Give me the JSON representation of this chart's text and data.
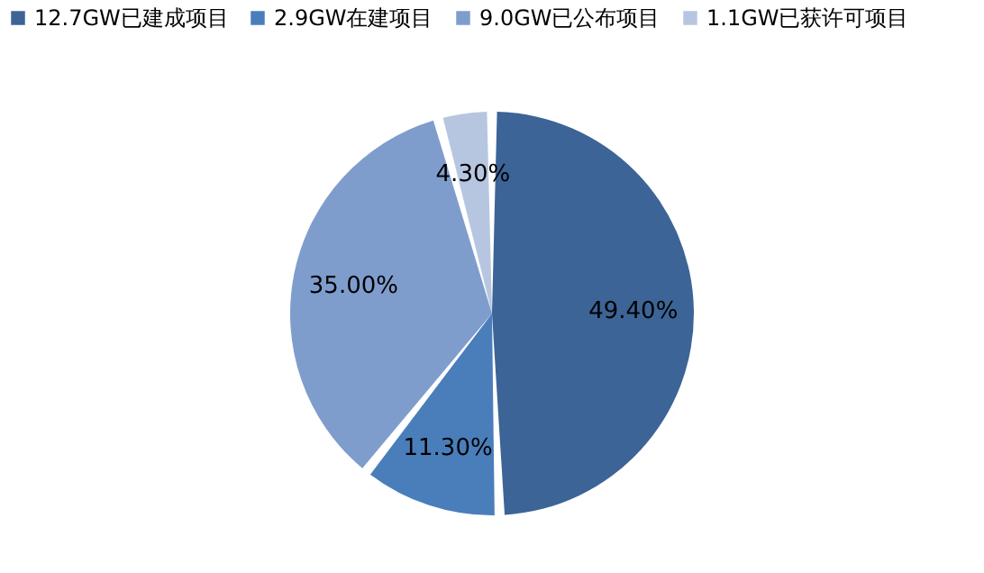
{
  "chart_data": {
    "type": "pie",
    "categories": [
      "12.7GW已建成项目",
      "2.9GW在建项目",
      "9.0GW已公布项目",
      "1.1GW已获许可项目"
    ],
    "values": [
      49.4,
      11.3,
      35.0,
      4.3
    ],
    "colors": [
      "#3c6496",
      "#4a7ebb",
      "#7f9dcc",
      "#b7c6e0"
    ],
    "value_labels": [
      "49.40%",
      "11.30%",
      "35.00%",
      "4.30%"
    ],
    "legend": "top"
  }
}
